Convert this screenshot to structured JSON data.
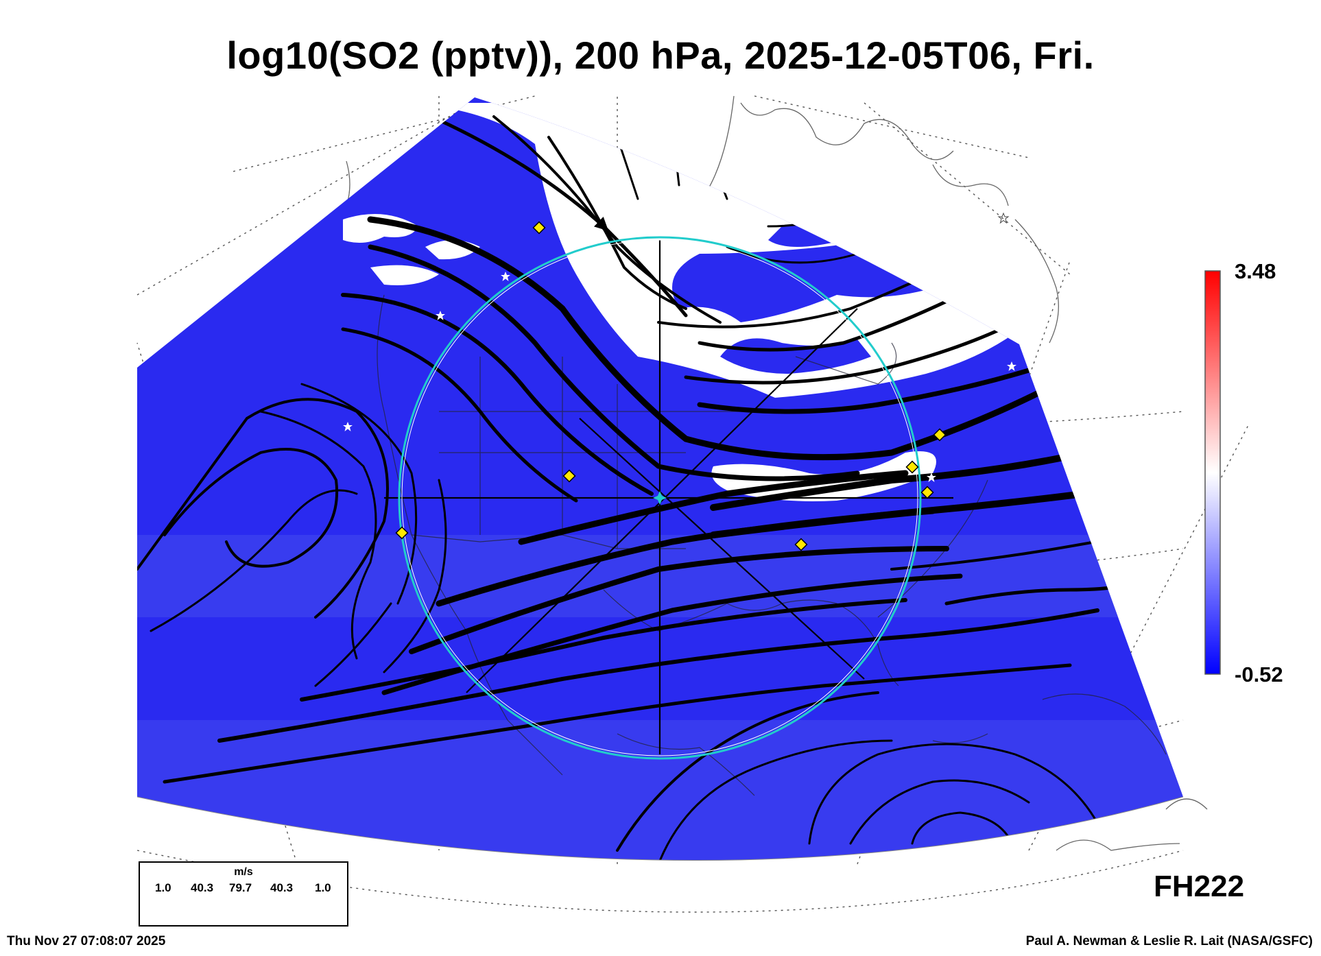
{
  "title": "log10(SO2 (pptv)), 200 hPa, 2025-12-05T06, Fri.",
  "colorbar": {
    "max_label": "3.48",
    "min_label": "-0.52",
    "colors": {
      "top": "#ff0000",
      "middle": "#ffffff",
      "bottom": "#0000ff"
    }
  },
  "field": {
    "variable": "log10(SO2 (pptv))",
    "level": "200 hPa",
    "valid_time": "2025-12-05T06",
    "dominant_color": "#2a2af0",
    "low_value_color": "#ffffff"
  },
  "forecast_hour": "FH222",
  "wind_legend": {
    "unit": "m/s",
    "labels": [
      "1.0",
      "40.3",
      "79.7",
      "40.3",
      "1.0"
    ]
  },
  "footer": {
    "timestamp": "Thu Nov 27 07:08:07 2025",
    "credit": "Paul A. Newman & Leslie R. Lait (NASA/GSFC)"
  },
  "map": {
    "ring_color": "#22cccc",
    "markers": {
      "yellow_diamond": "#ffe800",
      "white_star": "#ffffff"
    }
  }
}
